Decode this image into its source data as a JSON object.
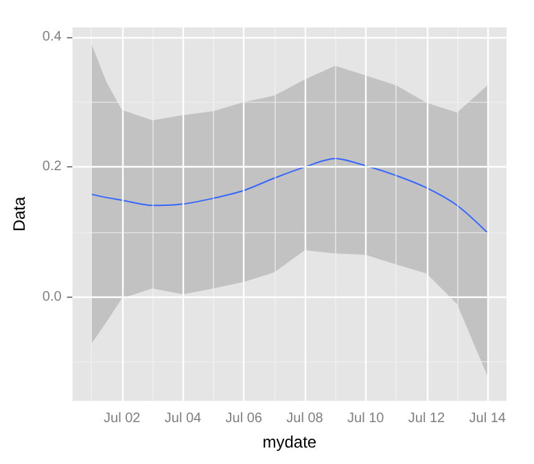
{
  "chart_data": {
    "type": "line",
    "xlabel": "mydate",
    "ylabel": "Data",
    "x": [
      "--07-01",
      "--07-01T12:00",
      "--07-02",
      "--07-03",
      "--07-04",
      "--07-05",
      "--07-06",
      "--07-07",
      "--07-08",
      "--07-09",
      "--07-10",
      "--07-11",
      "--07-12",
      "--07-13",
      "--07-14"
    ],
    "series": [
      {
        "color": "#3366ff",
        "values": [
          0.158,
          0.153,
          0.149,
          0.141,
          0.143,
          0.152,
          0.164,
          0.183,
          0.2,
          0.213,
          0.202,
          0.187,
          0.168,
          0.141,
          0.099
        ],
        "lower": [
          -0.072,
          -0.038,
          -0.002,
          0.013,
          0.004,
          0.013,
          0.023,
          0.038,
          0.072,
          0.067,
          0.065,
          0.05,
          0.036,
          -0.011,
          -0.122
        ],
        "upper": [
          0.389,
          0.33,
          0.288,
          0.272,
          0.28,
          0.286,
          0.3,
          0.31,
          0.335,
          0.356,
          0.341,
          0.326,
          0.299,
          0.284,
          0.326
        ]
      }
    ],
    "xlim": [
      "--06-30T09:00",
      "--07-14T15:00"
    ],
    "xticks": [
      {
        "value": "--07-02",
        "label": "Jul 02"
      },
      {
        "value": "--07-04",
        "label": "Jul 04"
      },
      {
        "value": "--07-06",
        "label": "Jul 06"
      },
      {
        "value": "--07-08",
        "label": "Jul 08"
      },
      {
        "value": "--07-10",
        "label": "Jul 10"
      },
      {
        "value": "--07-12",
        "label": "Jul 12"
      },
      {
        "value": "--07-14",
        "label": "Jul 14"
      }
    ],
    "ylim": [
      -0.16,
      0.415
    ],
    "yticks": [
      {
        "value": 0,
        "label": "0.0"
      },
      {
        "value": 0.2,
        "label": "0.2"
      },
      {
        "value": 0.4,
        "label": "0.4"
      }
    ],
    "grid": true,
    "marker": "none",
    "line_style": "solid"
  }
}
